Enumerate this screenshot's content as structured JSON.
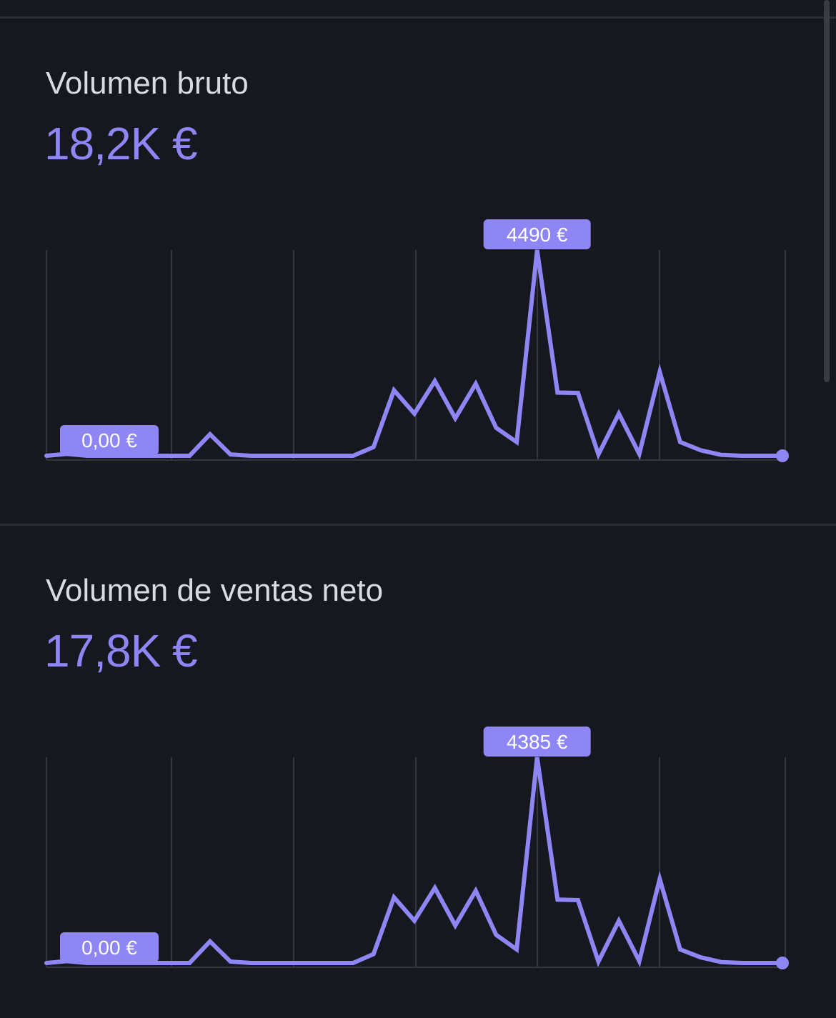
{
  "colors": {
    "background": "#17181f",
    "accent": "#8f86f6",
    "grid": "#34353d",
    "title": "#d9dae2"
  },
  "cards": [
    {
      "title": "Volumen bruto",
      "value": "18,2K €",
      "chart_data": {
        "type": "line",
        "x": [
          0,
          1,
          2,
          3,
          4,
          5,
          6,
          7,
          8,
          9,
          10,
          11,
          12,
          13,
          14,
          15,
          16,
          17,
          18,
          19,
          20,
          21,
          22,
          23,
          24,
          25,
          26,
          27,
          28,
          29,
          30,
          31,
          32,
          33,
          34,
          35,
          36
        ],
        "values": [
          0,
          40,
          0,
          0,
          0,
          0,
          0,
          0,
          470,
          30,
          0,
          0,
          0,
          0,
          0,
          0,
          190,
          1430,
          920,
          1630,
          820,
          1570,
          610,
          300,
          4490,
          1380,
          1370,
          30,
          920,
          40,
          1830,
          300,
          120,
          20,
          0,
          0,
          0
        ],
        "ylim": [
          0,
          4490
        ],
        "max_label": "4490 €",
        "min_label": "0,00 €",
        "grid": true
      }
    },
    {
      "title": "Volumen de ventas neto",
      "value": "17,8K €",
      "chart_data": {
        "type": "line",
        "x": [
          0,
          1,
          2,
          3,
          4,
          5,
          6,
          7,
          8,
          9,
          10,
          11,
          12,
          13,
          14,
          15,
          16,
          17,
          18,
          19,
          20,
          21,
          22,
          23,
          24,
          25,
          26,
          27,
          28,
          29,
          30,
          31,
          32,
          33,
          34,
          35,
          36
        ],
        "values": [
          0,
          40,
          0,
          0,
          0,
          0,
          0,
          0,
          460,
          30,
          0,
          0,
          0,
          0,
          0,
          0,
          190,
          1400,
          900,
          1600,
          800,
          1540,
          600,
          290,
          4385,
          1350,
          1340,
          30,
          900,
          40,
          1790,
          290,
          120,
          20,
          0,
          0,
          0
        ],
        "ylim": [
          0,
          4385
        ],
        "max_label": "4385 €",
        "min_label": "0,00 €",
        "grid": true
      }
    }
  ]
}
